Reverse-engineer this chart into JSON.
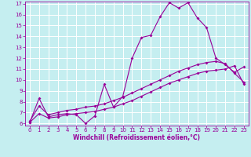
{
  "xlabel": "Windchill (Refroidissement éolien,°C)",
  "xlim": [
    -0.5,
    23.5
  ],
  "ylim": [
    5.8,
    17.2
  ],
  "xticks": [
    0,
    1,
    2,
    3,
    4,
    5,
    6,
    7,
    8,
    9,
    10,
    11,
    12,
    13,
    14,
    15,
    16,
    17,
    18,
    19,
    20,
    21,
    22,
    23
  ],
  "yticks": [
    6,
    7,
    8,
    9,
    10,
    11,
    12,
    13,
    14,
    15,
    16,
    17
  ],
  "background_color": "#c5eef0",
  "line_color": "#990099",
  "grid_color": "#ffffff",
  "line1_x": [
    0,
    1,
    2,
    3,
    4,
    5,
    6,
    7,
    8,
    9,
    10,
    11,
    12,
    13,
    14,
    15,
    16,
    17,
    18,
    19,
    20,
    21,
    22,
    23
  ],
  "line1_y": [
    6.1,
    8.3,
    6.6,
    6.8,
    6.9,
    6.8,
    6.0,
    6.7,
    9.6,
    7.5,
    8.5,
    12.0,
    13.9,
    14.1,
    15.8,
    17.1,
    16.6,
    17.1,
    15.7,
    14.8,
    12.0,
    11.4,
    10.7,
    11.2
  ],
  "line2_x": [
    0,
    1,
    2,
    3,
    4,
    5,
    6,
    7,
    8,
    9,
    10,
    11,
    12,
    13,
    14,
    15,
    16,
    17,
    18,
    19,
    20,
    21,
    22,
    23
  ],
  "line2_y": [
    6.2,
    7.6,
    6.8,
    7.0,
    7.2,
    7.3,
    7.5,
    7.6,
    7.8,
    8.1,
    8.4,
    8.8,
    9.2,
    9.6,
    10.0,
    10.4,
    10.8,
    11.1,
    11.4,
    11.6,
    11.7,
    11.5,
    10.6,
    9.8
  ],
  "line3_x": [
    0,
    1,
    2,
    3,
    4,
    5,
    6,
    7,
    8,
    9,
    10,
    11,
    12,
    13,
    14,
    15,
    16,
    17,
    18,
    19,
    20,
    21,
    22,
    23
  ],
  "line3_y": [
    6.1,
    6.9,
    6.5,
    6.6,
    6.8,
    6.9,
    7.0,
    7.1,
    7.3,
    7.5,
    7.8,
    8.1,
    8.5,
    8.9,
    9.3,
    9.7,
    10.0,
    10.3,
    10.6,
    10.8,
    10.9,
    11.0,
    11.3,
    9.6
  ],
  "marker": "D",
  "markersize": 2.0,
  "linewidth": 0.8,
  "tick_fontsize": 5.0,
  "label_fontsize": 5.5
}
